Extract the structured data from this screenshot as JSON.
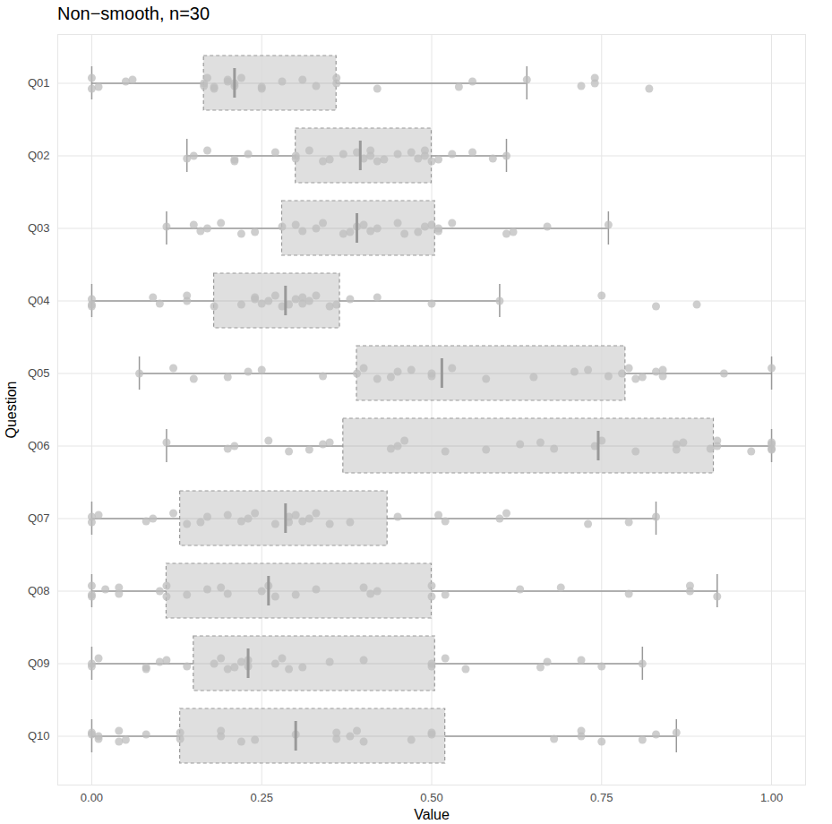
{
  "chart_data": {
    "type": "boxplot",
    "title": "Non−smooth, n=30",
    "x_label": "Value",
    "y_label": "Question",
    "orientation": "horizontal",
    "grid": true,
    "color": "#d9d9d9",
    "xlim": [
      -0.05,
      1.05
    ],
    "xticks": [
      {
        "value": 0,
        "label": "0.00"
      },
      {
        "value": 0.25,
        "label": "0.25"
      },
      {
        "value": 0.5,
        "label": "0.50"
      },
      {
        "value": 0.75,
        "label": "0.75"
      },
      {
        "value": 1,
        "label": "1.00"
      }
    ],
    "categories": [
      "Q01",
      "Q02",
      "Q03",
      "Q04",
      "Q05",
      "Q06",
      "Q07",
      "Q08",
      "Q09",
      "Q10"
    ],
    "boxes": [
      {
        "whisker_low": 0,
        "q1": 0.165,
        "median": 0.21,
        "q3": 0.36,
        "whisker_high": 0.64
      },
      {
        "whisker_low": 0.14,
        "q1": 0.3,
        "median": 0.395,
        "q3": 0.5,
        "whisker_high": 0.61
      },
      {
        "whisker_low": 0.11,
        "q1": 0.28,
        "median": 0.39,
        "q3": 0.505,
        "whisker_high": 0.76
      },
      {
        "whisker_low": 0,
        "q1": 0.18,
        "median": 0.285,
        "q3": 0.365,
        "whisker_high": 0.6
      },
      {
        "whisker_low": 0.07,
        "q1": 0.39,
        "median": 0.515,
        "q3": 0.785,
        "whisker_high": 1.0
      },
      {
        "whisker_low": 0.11,
        "q1": 0.37,
        "median": 0.745,
        "q3": 0.915,
        "whisker_high": 1.0
      },
      {
        "whisker_low": 0,
        "q1": 0.13,
        "median": 0.285,
        "q3": 0.435,
        "whisker_high": 0.83
      },
      {
        "whisker_low": 0,
        "q1": 0.11,
        "median": 0.26,
        "q3": 0.5,
        "whisker_high": 0.92
      },
      {
        "whisker_low": 0,
        "q1": 0.15,
        "median": 0.23,
        "q3": 0.505,
        "whisker_high": 0.81
      },
      {
        "whisker_low": 0,
        "q1": 0.13,
        "median": 0.3,
        "q3": 0.52,
        "whisker_high": 0.86
      }
    ],
    "points": [
      [
        0,
        0,
        0.01,
        0.05,
        0.06,
        0.165,
        0.165,
        0.17,
        0.18,
        0.18,
        0.2,
        0.2,
        0.21,
        0.21,
        0.22,
        0.25,
        0.25,
        0.28,
        0.31,
        0.33,
        0.36,
        0.36,
        0.42,
        0.54,
        0.56,
        0.64,
        0.72,
        0.74,
        0.74,
        0.82
      ],
      [
        0.14,
        0.15,
        0.17,
        0.21,
        0.21,
        0.23,
        0.27,
        0.3,
        0.3,
        0.32,
        0.34,
        0.35,
        0.37,
        0.39,
        0.4,
        0.41,
        0.41,
        0.42,
        0.43,
        0.45,
        0.47,
        0.48,
        0.49,
        0.49,
        0.5,
        0.51,
        0.53,
        0.56,
        0.59,
        0.61
      ],
      [
        0.11,
        0.15,
        0.16,
        0.17,
        0.19,
        0.22,
        0.24,
        0.28,
        0.3,
        0.31,
        0.33,
        0.34,
        0.37,
        0.38,
        0.39,
        0.4,
        0.41,
        0.42,
        0.45,
        0.46,
        0.48,
        0.49,
        0.5,
        0.51,
        0.51,
        0.53,
        0.61,
        0.62,
        0.67,
        0.76
      ],
      [
        0,
        0,
        0,
        0.09,
        0.1,
        0.14,
        0.14,
        0.18,
        0.22,
        0.24,
        0.24,
        0.25,
        0.26,
        0.27,
        0.28,
        0.29,
        0.3,
        0.31,
        0.31,
        0.32,
        0.33,
        0.35,
        0.36,
        0.38,
        0.42,
        0.5,
        0.6,
        0.75,
        0.83,
        0.89
      ],
      [
        0.07,
        0.12,
        0.15,
        0.2,
        0.23,
        0.25,
        0.34,
        0.39,
        0.4,
        0.42,
        0.44,
        0.45,
        0.47,
        0.5,
        0.5,
        0.53,
        0.58,
        0.65,
        0.71,
        0.73,
        0.76,
        0.78,
        0.79,
        0.8,
        0.81,
        0.83,
        0.84,
        0.84,
        0.93,
        1.0
      ],
      [
        0.11,
        0.2,
        0.21,
        0.26,
        0.29,
        0.32,
        0.34,
        0.35,
        0.44,
        0.45,
        0.46,
        0.52,
        0.58,
        0.63,
        0.66,
        0.68,
        0.74,
        0.75,
        0.8,
        0.86,
        0.86,
        0.87,
        0.91,
        0.92,
        0.92,
        0.97,
        1.0,
        1.0,
        1.0,
        1.0
      ],
      [
        0,
        0,
        0.01,
        0.08,
        0.09,
        0.12,
        0.14,
        0.16,
        0.17,
        0.2,
        0.22,
        0.23,
        0.24,
        0.27,
        0.29,
        0.29,
        0.3,
        0.31,
        0.32,
        0.33,
        0.35,
        0.38,
        0.45,
        0.51,
        0.52,
        0.6,
        0.61,
        0.73,
        0.79,
        0.83
      ],
      [
        0,
        0,
        0,
        0.02,
        0.04,
        0.04,
        0.1,
        0.11,
        0.11,
        0.14,
        0.17,
        0.19,
        0.2,
        0.25,
        0.26,
        0.27,
        0.3,
        0.33,
        0.4,
        0.41,
        0.42,
        0.5,
        0.5,
        0.52,
        0.63,
        0.69,
        0.79,
        0.88,
        0.88,
        0.92
      ],
      [
        0,
        0,
        0.01,
        0.08,
        0.08,
        0.1,
        0.11,
        0.14,
        0.18,
        0.19,
        0.2,
        0.21,
        0.22,
        0.23,
        0.23,
        0.27,
        0.28,
        0.29,
        0.31,
        0.35,
        0.4,
        0.5,
        0.5,
        0.52,
        0.55,
        0.66,
        0.67,
        0.72,
        0.75,
        0.81
      ],
      [
        0,
        0,
        0.01,
        0.01,
        0.04,
        0.04,
        0.05,
        0.08,
        0.13,
        0.13,
        0.19,
        0.19,
        0.22,
        0.24,
        0.3,
        0.36,
        0.36,
        0.38,
        0.39,
        0.4,
        0.47,
        0.5,
        0.5,
        0.68,
        0.72,
        0.72,
        0.75,
        0.81,
        0.83,
        0.86
      ]
    ]
  }
}
